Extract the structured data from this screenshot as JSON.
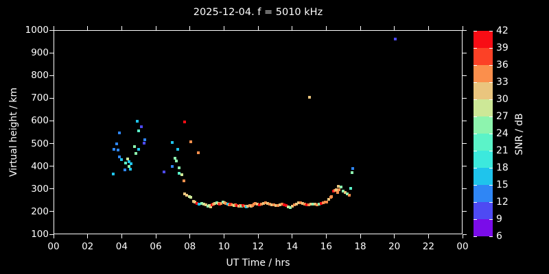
{
  "title": "2025-12-04. f = 5010 kHz",
  "chart_data": {
    "type": "scatter",
    "title": "2025-12-04. f = 5010 kHz",
    "xlabel": "UT Time / hrs",
    "ylabel": "Virtual height / km",
    "xlim": [
      0,
      24
    ],
    "ylim": [
      100,
      1000
    ],
    "x_tick_values": [
      0,
      2,
      4,
      6,
      8,
      10,
      12,
      14,
      16,
      18,
      20,
      22,
      24
    ],
    "x_tick_labels": [
      "00",
      "02",
      "04",
      "06",
      "08",
      "10",
      "12",
      "14",
      "16",
      "18",
      "20",
      "22",
      "00"
    ],
    "y_tick_values": [
      100,
      200,
      300,
      400,
      500,
      600,
      700,
      800,
      900,
      1000
    ],
    "background_color": "#000000",
    "text_color": "#ffffff",
    "grid": false,
    "marker": "square",
    "marker_size_px": 4,
    "colorbar": {
      "label": "SNR / dB",
      "tick_values": [
        6,
        9,
        12,
        15,
        18,
        21,
        24,
        27,
        30,
        33,
        36,
        39,
        42
      ],
      "bin_colors_low_to_high": [
        "#7a0ce9",
        "#4e4af3",
        "#2f86f5",
        "#1fc4ec",
        "#3ce9dd",
        "#5bf3c8",
        "#8df4ae",
        "#cde897",
        "#eac57e",
        "#fb8f4c",
        "#fc4126",
        "#f80d15"
      ]
    },
    "points_format": [
      "ut_hours",
      "virtual_height_km",
      "snr_db"
    ],
    "points": [
      [
        3.46,
        369,
        16.5
      ],
      [
        3.5,
        478,
        13.5
      ],
      [
        3.66,
        502,
        13.5
      ],
      [
        3.74,
        475,
        13.5
      ],
      [
        3.83,
        550,
        13.5
      ],
      [
        3.83,
        444,
        13.5
      ],
      [
        3.95,
        432,
        16.5
      ],
      [
        4.15,
        387,
        13.5
      ],
      [
        4.19,
        417,
        22.5
      ],
      [
        4.31,
        435,
        28.5
      ],
      [
        4.39,
        423,
        16.5
      ],
      [
        4.39,
        402,
        25.5
      ],
      [
        4.47,
        390,
        16.5
      ],
      [
        4.51,
        414,
        16.5
      ],
      [
        4.71,
        490,
        25.5
      ],
      [
        4.79,
        459,
        25.5
      ],
      [
        4.87,
        601,
        16.5
      ],
      [
        4.95,
        559,
        22.5
      ],
      [
        4.95,
        478,
        16.5
      ],
      [
        5.11,
        577,
        10.5
      ],
      [
        5.28,
        505,
        10.5
      ],
      [
        5.32,
        520,
        13.5
      ],
      [
        6.44,
        378,
        10.5
      ],
      [
        6.93,
        508,
        16.5
      ],
      [
        6.93,
        402,
        13.5
      ],
      [
        7.09,
        438,
        25.5
      ],
      [
        7.17,
        426,
        25.5
      ],
      [
        7.25,
        478,
        16.5
      ],
      [
        7.33,
        396,
        25.5
      ],
      [
        7.33,
        372,
        22.5
      ],
      [
        7.49,
        366,
        28.5
      ],
      [
        7.61,
        339,
        34.5
      ],
      [
        7.65,
        598,
        40.5
      ],
      [
        8.01,
        511,
        34.5
      ],
      [
        8.46,
        462,
        34.5
      ],
      [
        7.65,
        281,
        31.5
      ],
      [
        7.77,
        275,
        31.5
      ],
      [
        7.93,
        269,
        28.5
      ],
      [
        8.01,
        266,
        28.5
      ],
      [
        8.17,
        248,
        31.5
      ],
      [
        8.26,
        245,
        31.5
      ],
      [
        8.38,
        239,
        40.5
      ],
      [
        8.5,
        236,
        16.5
      ],
      [
        8.66,
        239,
        25.5
      ],
      [
        8.78,
        236,
        28.5
      ],
      [
        8.9,
        233,
        31.5
      ],
      [
        9.02,
        227,
        25.5
      ],
      [
        9.1,
        230,
        28.5
      ],
      [
        9.18,
        224,
        31.5
      ],
      [
        9.26,
        233,
        40.5
      ],
      [
        9.34,
        236,
        34.5
      ],
      [
        9.42,
        239,
        31.5
      ],
      [
        9.54,
        242,
        25.5
      ],
      [
        9.62,
        239,
        31.5
      ],
      [
        9.71,
        236,
        40.5
      ],
      [
        9.79,
        239,
        34.5
      ],
      [
        9.91,
        245,
        25.5
      ],
      [
        9.99,
        242,
        31.5
      ],
      [
        10.07,
        239,
        34.5
      ],
      [
        10.19,
        236,
        16.5
      ],
      [
        10.27,
        233,
        34.5
      ],
      [
        10.35,
        236,
        40.5
      ],
      [
        10.43,
        233,
        34.5
      ],
      [
        10.55,
        230,
        28.5
      ],
      [
        10.63,
        233,
        34.5
      ],
      [
        10.71,
        230,
        40.5
      ],
      [
        10.83,
        227,
        31.5
      ],
      [
        10.91,
        230,
        34.5
      ],
      [
        10.99,
        227,
        25.5
      ],
      [
        11.07,
        230,
        40.5
      ],
      [
        11.19,
        227,
        34.5
      ],
      [
        11.27,
        224,
        16.5
      ],
      [
        11.36,
        227,
        31.5
      ],
      [
        11.48,
        230,
        34.5
      ],
      [
        11.56,
        227,
        31.5
      ],
      [
        11.64,
        230,
        34.5
      ],
      [
        11.72,
        236,
        34.5
      ],
      [
        11.8,
        239,
        34.5
      ],
      [
        11.92,
        236,
        31.5
      ],
      [
        12.04,
        233,
        40.5
      ],
      [
        12.16,
        236,
        34.5
      ],
      [
        12.28,
        239,
        31.5
      ],
      [
        12.4,
        242,
        34.5
      ],
      [
        12.52,
        239,
        31.5
      ],
      [
        12.64,
        236,
        34.5
      ],
      [
        12.77,
        233,
        31.5
      ],
      [
        12.89,
        233,
        34.5
      ],
      [
        13.01,
        230,
        31.5
      ],
      [
        13.13,
        230,
        34.5
      ],
      [
        13.25,
        233,
        31.5
      ],
      [
        13.37,
        236,
        34.5
      ],
      [
        13.49,
        233,
        40.5
      ],
      [
        13.61,
        230,
        40.5
      ],
      [
        13.73,
        224,
        28.5
      ],
      [
        13.85,
        221,
        25.5
      ],
      [
        13.97,
        227,
        31.5
      ],
      [
        14.09,
        233,
        34.5
      ],
      [
        14.21,
        236,
        31.5
      ],
      [
        14.34,
        242,
        31.5
      ],
      [
        14.46,
        242,
        34.5
      ],
      [
        14.58,
        239,
        31.5
      ],
      [
        14.7,
        236,
        34.5
      ],
      [
        14.82,
        233,
        40.5
      ],
      [
        14.94,
        233,
        34.5
      ],
      [
        15.06,
        236,
        31.5
      ],
      [
        15.18,
        236,
        25.5
      ],
      [
        15.3,
        236,
        31.5
      ],
      [
        15.42,
        233,
        34.5
      ],
      [
        15.54,
        236,
        25.5
      ],
      [
        15.66,
        239,
        40.5
      ],
      [
        15.78,
        242,
        34.5
      ],
      [
        15.9,
        245,
        34.5
      ],
      [
        15.99,
        245,
        34.5
      ],
      [
        16.11,
        257,
        31.5
      ],
      [
        16.23,
        266,
        34.5
      ],
      [
        16.27,
        269,
        34.5
      ],
      [
        16.39,
        293,
        40.5
      ],
      [
        16.47,
        296,
        34.5
      ],
      [
        16.55,
        299,
        31.5
      ],
      [
        16.63,
        287,
        34.5
      ],
      [
        16.67,
        314,
        31.5
      ],
      [
        16.71,
        299,
        34.5
      ],
      [
        16.83,
        311,
        25.5
      ],
      [
        16.95,
        293,
        25.5
      ],
      [
        17.07,
        287,
        31.5
      ],
      [
        17.19,
        281,
        25.5
      ],
      [
        17.31,
        275,
        34.5
      ],
      [
        17.4,
        305,
        22.5
      ],
      [
        17.48,
        375,
        25.5
      ],
      [
        17.52,
        393,
        13.5
      ],
      [
        14.98,
        707,
        31.5
      ],
      [
        20.01,
        964,
        10.5
      ]
    ]
  }
}
